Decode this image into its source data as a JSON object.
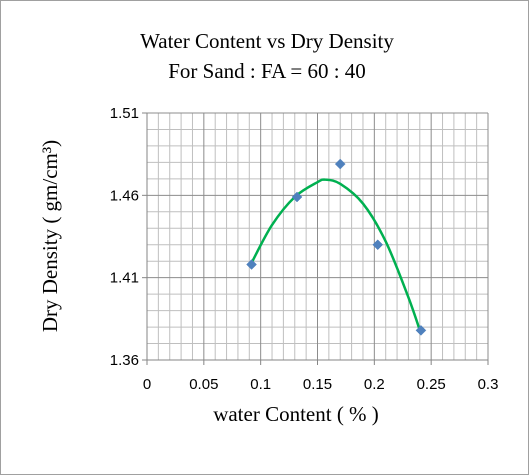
{
  "chart_data": {
    "type": "scatter",
    "title_line1": "Water Content vs  Dry Density",
    "title_line2": "For Sand : FA = 60 : 40",
    "xlabel": "water Content ( % )",
    "ylabel": "Dry Density ( gm/cm³)",
    "xlim": [
      0,
      0.3
    ],
    "ylim": [
      1.36,
      1.51
    ],
    "x_ticks": [
      "0",
      "0.05",
      "0.1",
      "0.15",
      "0.2",
      "0.25",
      "0.3"
    ],
    "y_ticks": [
      "1.36",
      "1.41",
      "1.46",
      "1.51"
    ],
    "grid": true,
    "series": [
      {
        "points": [
          {
            "x": 0.092,
            "y": 1.418
          },
          {
            "x": 0.132,
            "y": 1.459
          },
          {
            "x": 0.17,
            "y": 1.479
          },
          {
            "x": 0.203,
            "y": 1.43
          },
          {
            "x": 0.241,
            "y": 1.378
          }
        ],
        "marker": "diamond",
        "color": "#4f81bd"
      }
    ],
    "trendline": {
      "type": "polynomial",
      "color": "#00b050",
      "x_range": [
        0.092,
        0.241
      ],
      "curve": [
        {
          "x": 0.092,
          "y": 1.419
        },
        {
          "x": 0.11,
          "y": 1.442
        },
        {
          "x": 0.13,
          "y": 1.459
        },
        {
          "x": 0.15,
          "y": 1.468
        },
        {
          "x": 0.157,
          "y": 1.4695
        },
        {
          "x": 0.17,
          "y": 1.467
        },
        {
          "x": 0.19,
          "y": 1.455
        },
        {
          "x": 0.21,
          "y": 1.432
        },
        {
          "x": 0.23,
          "y": 1.398
        },
        {
          "x": 0.241,
          "y": 1.376
        }
      ]
    }
  }
}
